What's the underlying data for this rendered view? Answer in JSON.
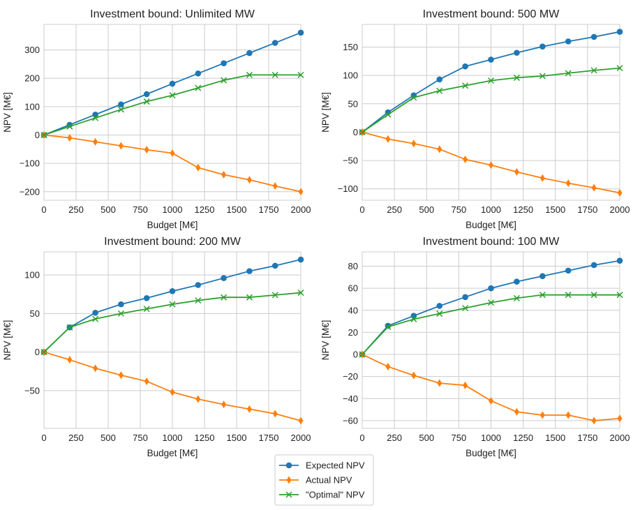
{
  "colors": {
    "expected": "#1f77b4",
    "actual": "#ff7f0e",
    "optimal": "#2ca02c",
    "grid": "#cccccc"
  },
  "legend": {
    "placement": "bottom-center",
    "items": [
      {
        "label": "Expected NPV",
        "color": "#1f77b4",
        "marker": "circle"
      },
      {
        "label": "Actual NPV",
        "color": "#ff7f0e",
        "marker": "diamond"
      },
      {
        "label": "\"Optimal\" NPV",
        "color": "#2ca02c",
        "marker": "x"
      }
    ]
  },
  "chart_data": [
    {
      "type": "line",
      "title": "Investment bound: Unlimited MW",
      "xlabel": "Budget [M€]",
      "ylabel": "NPV [M€]",
      "xlim": [
        0,
        2000
      ],
      "ylim": [
        -230,
        390
      ],
      "xticks": [
        0,
        250,
        500,
        750,
        1000,
        1250,
        1500,
        1750,
        2000
      ],
      "yticks": [
        -200,
        -100,
        0,
        100,
        200,
        300
      ],
      "grid": true,
      "x": [
        0,
        200,
        400,
        600,
        800,
        1000,
        1200,
        1400,
        1600,
        1800,
        2000
      ],
      "series": [
        {
          "name": "Expected NPV",
          "marker": "circle",
          "values": [
            0,
            36,
            72,
            108,
            144,
            181,
            217,
            253,
            289,
            325,
            361
          ]
        },
        {
          "name": "Actual NPV",
          "marker": "diamond",
          "values": [
            0,
            -10,
            -24,
            -38,
            -52,
            -64,
            -115,
            -140,
            -158,
            -180,
            -200
          ]
        },
        {
          "name": "\"Optimal\" NPV",
          "marker": "x",
          "values": [
            0,
            30,
            60,
            90,
            118,
            140,
            166,
            193,
            212,
            212,
            212
          ]
        }
      ]
    },
    {
      "type": "line",
      "title": "Investment bound: 500 MW",
      "xlabel": "Budget [M€]",
      "ylabel": "NPV [M€]",
      "xlim": [
        0,
        2000
      ],
      "ylim": [
        -120,
        190
      ],
      "xticks": [
        0,
        250,
        500,
        750,
        1000,
        1250,
        1500,
        1750,
        2000
      ],
      "yticks": [
        -100,
        -50,
        0,
        50,
        100,
        150
      ],
      "grid": true,
      "x": [
        0,
        200,
        400,
        600,
        800,
        1000,
        1200,
        1400,
        1600,
        1800,
        2000
      ],
      "series": [
        {
          "name": "Expected NPV",
          "marker": "circle",
          "values": [
            0,
            35,
            65,
            93,
            116,
            128,
            140,
            151,
            160,
            168,
            177
          ]
        },
        {
          "name": "Actual NPV",
          "marker": "diamond",
          "values": [
            0,
            -12,
            -20,
            -30,
            -48,
            -58,
            -70,
            -81,
            -90,
            -98,
            -107
          ]
        },
        {
          "name": "\"Optimal\" NPV",
          "marker": "x",
          "values": [
            0,
            31,
            61,
            73,
            82,
            91,
            96,
            99,
            104,
            109,
            113
          ]
        }
      ]
    },
    {
      "type": "line",
      "title": "Investment bound: 200 MW",
      "xlabel": "Budget [M€]",
      "ylabel": "NPV [M€]",
      "xlim": [
        0,
        2000
      ],
      "ylim": [
        -99,
        130
      ],
      "xticks": [
        0,
        250,
        500,
        750,
        1000,
        1250,
        1500,
        1750,
        2000
      ],
      "yticks": [
        -50,
        0,
        50,
        100
      ],
      "grid": true,
      "x": [
        0,
        200,
        400,
        600,
        800,
        1000,
        1200,
        1400,
        1600,
        1800,
        2000
      ],
      "series": [
        {
          "name": "Expected NPV",
          "marker": "circle",
          "values": [
            0,
            32,
            51,
            62,
            70,
            79,
            87,
            96,
            105,
            112,
            120
          ]
        },
        {
          "name": "Actual NPV",
          "marker": "diamond",
          "values": [
            0,
            -10,
            -21,
            -30,
            -38,
            -52,
            -61,
            -68,
            -74,
            -80,
            -89
          ]
        },
        {
          "name": "\"Optimal\" NPV",
          "marker": "x",
          "values": [
            0,
            32,
            43,
            50,
            56,
            62,
            67,
            71,
            71,
            74,
            77
          ]
        }
      ]
    },
    {
      "type": "line",
      "title": "Investment bound: 100 MW",
      "xlabel": "Budget [M€]",
      "ylabel": "NPV [M€]",
      "xlim": [
        0,
        2000
      ],
      "ylim": [
        -67,
        93
      ],
      "xticks": [
        0,
        250,
        500,
        750,
        1000,
        1250,
        1500,
        1750,
        2000
      ],
      "yticks": [
        -60,
        -40,
        -20,
        0,
        20,
        40,
        60,
        80
      ],
      "grid": true,
      "x": [
        0,
        200,
        400,
        600,
        800,
        1000,
        1200,
        1400,
        1600,
        1800,
        2000
      ],
      "series": [
        {
          "name": "Expected NPV",
          "marker": "circle",
          "values": [
            0,
            26,
            35,
            44,
            52,
            60,
            66,
            71,
            76,
            81,
            85
          ]
        },
        {
          "name": "Actual NPV",
          "marker": "diamond",
          "values": [
            0,
            -11,
            -19,
            -26,
            -28,
            -42,
            -52,
            -55,
            -55,
            -60,
            -58
          ]
        },
        {
          "name": "\"Optimal\" NPV",
          "marker": "x",
          "values": [
            0,
            25,
            32,
            37,
            42,
            47,
            51,
            54,
            54,
            54,
            54
          ]
        }
      ]
    }
  ]
}
